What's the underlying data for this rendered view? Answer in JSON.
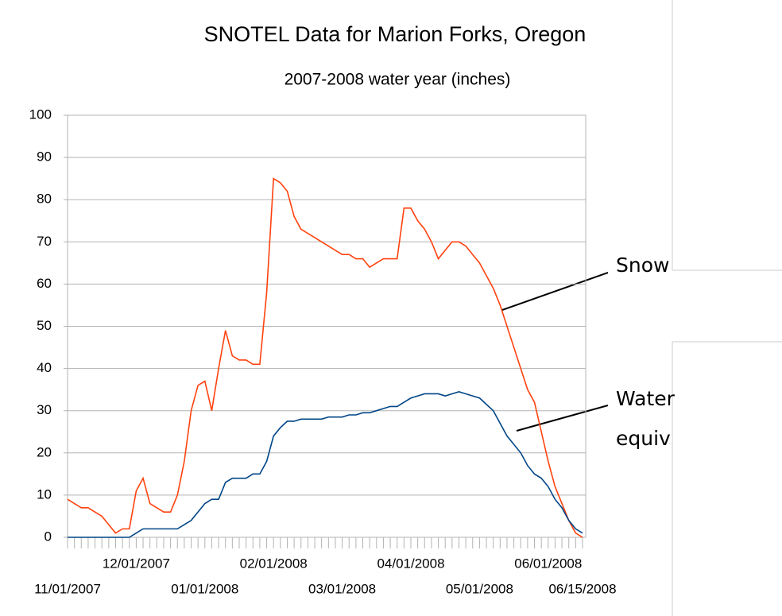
{
  "chart_data": {
    "type": "line",
    "title": "SNOTEL Data for Marion Forks, Oregon",
    "subtitle": "2007-2008 water year (inches)",
    "categories": [
      "11/01/2007",
      null,
      null,
      null,
      null,
      null,
      null,
      null,
      null,
      null,
      "12/01/2007",
      null,
      null,
      null,
      null,
      null,
      null,
      null,
      null,
      null,
      "01/01/2008",
      null,
      null,
      null,
      null,
      null,
      null,
      null,
      null,
      null,
      "02/01/2008",
      null,
      null,
      null,
      null,
      null,
      null,
      null,
      null,
      null,
      "03/01/2008",
      null,
      null,
      null,
      null,
      null,
      null,
      null,
      null,
      null,
      "04/01/2008",
      null,
      null,
      null,
      null,
      null,
      null,
      null,
      null,
      null,
      "05/01/2008",
      null,
      null,
      null,
      null,
      null,
      null,
      null,
      null,
      null,
      "06/01/2008",
      null,
      null,
      null,
      null,
      "06/15/2008"
    ],
    "series": [
      {
        "name": "Snow",
        "color": "#ff420e",
        "values": [
          9,
          8,
          7,
          7,
          6,
          5,
          3,
          1,
          2,
          2,
          11,
          14,
          8,
          7,
          6,
          6,
          10,
          18,
          30,
          36,
          37,
          30,
          40,
          49,
          43,
          42,
          42,
          41,
          41,
          58,
          85,
          84,
          82,
          76,
          73,
          72,
          71,
          70,
          69,
          68,
          67,
          67,
          66,
          66,
          64,
          65,
          66,
          66,
          66,
          78,
          78,
          75,
          73,
          70,
          66,
          68,
          70,
          70,
          69,
          67,
          65,
          62,
          59,
          55,
          50,
          45,
          40,
          35,
          32,
          25,
          18,
          12,
          8,
          4,
          1,
          0
        ]
      },
      {
        "name": "Water equiv",
        "color": "#004586",
        "values": [
          0,
          0,
          0,
          0,
          0,
          0,
          0,
          0,
          0,
          0,
          1,
          2,
          2,
          2,
          2,
          2,
          2,
          3,
          4,
          6,
          8,
          9,
          9,
          13,
          14,
          14,
          14,
          15,
          15,
          18,
          24,
          26,
          27.5,
          27.5,
          28,
          28,
          28,
          28,
          28.5,
          28.5,
          28.5,
          29,
          29,
          29.5,
          29.5,
          30,
          30.5,
          31,
          31,
          32,
          33,
          33.5,
          34,
          34,
          34,
          33.5,
          34,
          34.5,
          34,
          33.5,
          33,
          31.5,
          30,
          27,
          24,
          22,
          20,
          17,
          15,
          14,
          12,
          9,
          7,
          4,
          2,
          1
        ]
      }
    ],
    "annotations": [
      {
        "lines": [
          "Snow"
        ]
      },
      {
        "lines": [
          "Water",
          "equiv"
        ]
      }
    ],
    "ylim": [
      0,
      100
    ],
    "yticks": [
      0,
      10,
      20,
      30,
      40,
      50,
      60,
      70,
      80,
      90,
      100
    ],
    "grid": true
  }
}
